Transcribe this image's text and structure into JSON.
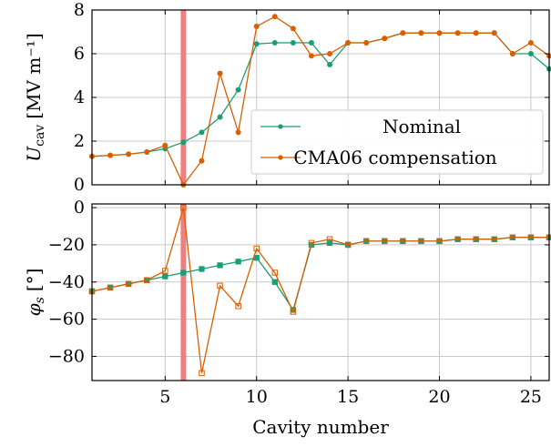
{
  "colors": {
    "nominal": "#1b9e77",
    "cma06": "#d95f02",
    "highlight": "#f08080",
    "grid": "#c8c8c8"
  },
  "chart_data": [
    {
      "type": "line",
      "panel": "top",
      "ylabel_main": "U",
      "ylabel_sub": "cav",
      "ylabel_unit": "[MV m⁻¹]",
      "xlim": [
        1,
        26
      ],
      "ylim": [
        0,
        8
      ],
      "yticks": [
        0,
        2,
        4,
        6,
        8
      ],
      "ytick_labels": [
        "0",
        "2",
        "4",
        "6",
        "8"
      ],
      "xticks": [
        5,
        10,
        15,
        20,
        25
      ],
      "grid": true,
      "legend": "center-right",
      "highlight_x": 6,
      "series": [
        {
          "name": "Nominal",
          "marker": "circle",
          "x": [
            1,
            2,
            3,
            4,
            5,
            6,
            7,
            8,
            9,
            10,
            11,
            12,
            13,
            14,
            15,
            16,
            17,
            18,
            19,
            20,
            21,
            22,
            23,
            24,
            25,
            26
          ],
          "values": [
            1.3,
            1.35,
            1.4,
            1.5,
            1.65,
            1.95,
            2.4,
            3.1,
            4.35,
            6.45,
            6.5,
            6.5,
            6.5,
            5.5,
            6.5,
            6.5,
            6.7,
            6.95,
            6.95,
            6.95,
            6.95,
            6.95,
            6.95,
            6.0,
            6.0,
            5.3
          ]
        },
        {
          "name": "CMA06 compensation",
          "marker": "circle",
          "x": [
            1,
            2,
            3,
            4,
            5,
            6,
            7,
            8,
            9,
            10,
            11,
            12,
            13,
            14,
            15,
            16,
            17,
            18,
            19,
            20,
            21,
            22,
            23,
            24,
            25,
            26
          ],
          "values": [
            1.3,
            1.35,
            1.4,
            1.5,
            1.8,
            0.0,
            1.1,
            5.1,
            2.4,
            7.25,
            7.7,
            7.15,
            5.9,
            6.0,
            6.5,
            6.5,
            6.7,
            6.95,
            6.95,
            6.95,
            6.95,
            6.95,
            6.95,
            6.0,
            6.5,
            5.9
          ]
        }
      ]
    },
    {
      "type": "line",
      "panel": "bottom",
      "ylabel_main": "φ",
      "ylabel_sub": "s",
      "ylabel_unit": "[°]",
      "xlabel": "Cavity number",
      "xlim": [
        1,
        26
      ],
      "ylim": [
        -93,
        2
      ],
      "yticks": [
        0,
        -20,
        -40,
        -60,
        -80
      ],
      "ytick_labels": [
        "0",
        "−20",
        "−40",
        "−60",
        "−80"
      ],
      "xticks": [
        5,
        10,
        15,
        20,
        25
      ],
      "xtick_labels": [
        "5",
        "10",
        "15",
        "20",
        "25"
      ],
      "grid": true,
      "highlight_x": 6,
      "series": [
        {
          "name": "Nominal",
          "marker": "square",
          "x": [
            1,
            2,
            3,
            4,
            5,
            6,
            7,
            8,
            9,
            10,
            11,
            12,
            13,
            14,
            15,
            16,
            17,
            18,
            19,
            20,
            21,
            22,
            23,
            24,
            25,
            26
          ],
          "values": [
            -45,
            -43,
            -41,
            -39,
            -37,
            -35,
            -33,
            -31,
            -29,
            -27,
            -40,
            -55,
            -20,
            -19,
            -20,
            -18,
            -18,
            -18,
            -18,
            -18,
            -17,
            -17,
            -17,
            -16,
            -16,
            -16
          ]
        },
        {
          "name": "CMA06 compensation",
          "marker": "square",
          "x": [
            1,
            2,
            3,
            4,
            5,
            6,
            7,
            8,
            9,
            10,
            11,
            12,
            13,
            14,
            15,
            16,
            17,
            18,
            19,
            20,
            21,
            22,
            23,
            24,
            25,
            26
          ],
          "values": [
            -45,
            -43,
            -41,
            -39,
            -34,
            0,
            -89,
            -42,
            -53,
            -22,
            -35,
            -56,
            -19,
            -17,
            -20,
            -18,
            -18,
            -18,
            -18,
            -18,
            -17,
            -17,
            -17,
            -16,
            -16,
            -16
          ]
        }
      ]
    }
  ]
}
